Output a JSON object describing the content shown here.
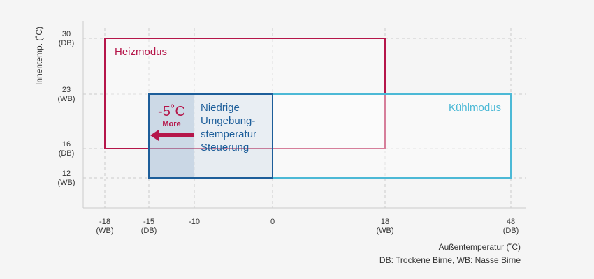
{
  "chart_data": {
    "type": "range",
    "ylabel": "Innentemp. (˚C)",
    "xlabel": "Außentemperatur (˚C)",
    "footnote": "DB: Trockene Birne, WB: Nasse Birne",
    "xticks": [
      {
        "value": -18,
        "label": "-18\n(WB)"
      },
      {
        "value": -15,
        "label": "-15\n(DB)"
      },
      -10,
      0,
      {
        "value": 18,
        "label": "18\n(WB)"
      },
      {
        "value": 48,
        "label": "48\n(DB)"
      }
    ],
    "yticks": [
      {
        "value": 30,
        "label": "30\n(DB)"
      },
      {
        "value": 23,
        "label": "23\n(WB)"
      },
      {
        "value": 16,
        "label": "16\n(DB)"
      },
      {
        "value": 12,
        "label": "12\n(WB)"
      }
    ],
    "grid": true,
    "regions": [
      {
        "name": "Heizmodus",
        "color": "#b5164a",
        "x": [
          -18,
          18
        ],
        "y": [
          16,
          30
        ],
        "label_corner": "top-left"
      },
      {
        "name": "Kühlmodus",
        "color": "#4cb9d6",
        "x": [
          -15,
          48
        ],
        "y": [
          12,
          23
        ],
        "label_corner": "top-right"
      },
      {
        "name": "Niedrige\nUmgebung-\nstemperatur\nSteuerung",
        "color": "#1d5e9a",
        "x": [
          -15,
          0
        ],
        "y": [
          12,
          23
        ],
        "label_corner": "top-right-outside"
      }
    ],
    "annotation": {
      "text": "-5˚C",
      "subtext": "More",
      "color": "#b5164a",
      "x": [
        -10,
        -15
      ]
    }
  }
}
